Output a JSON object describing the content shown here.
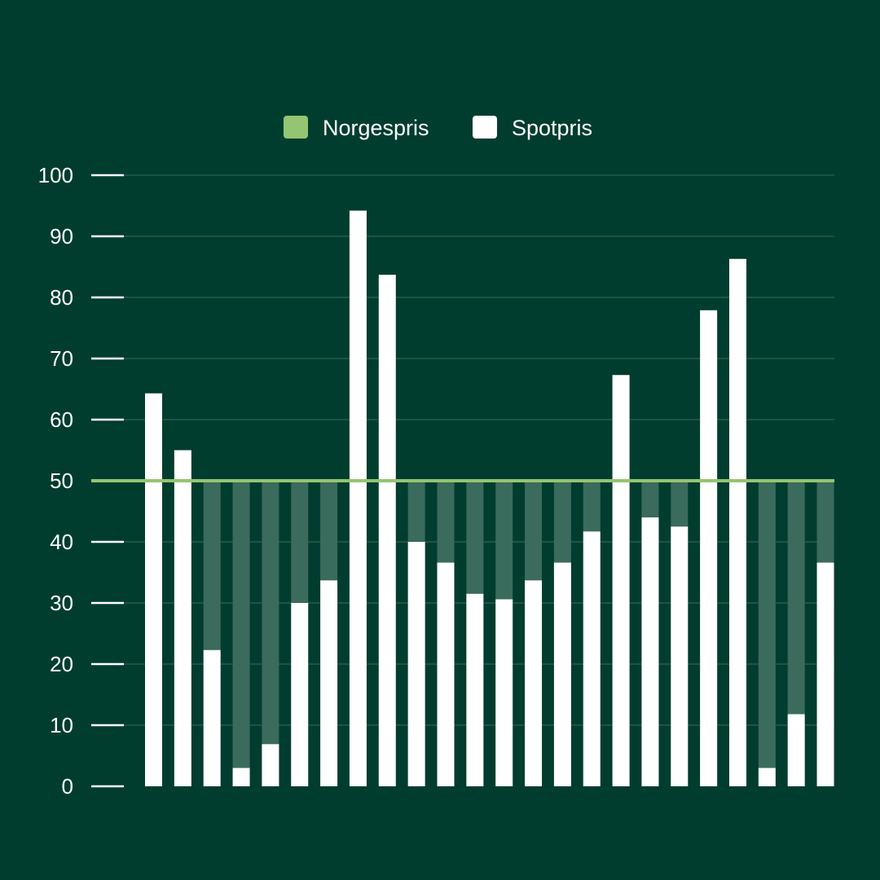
{
  "chart_data": {
    "type": "bar",
    "title": "",
    "xlabel": "",
    "ylabel": "",
    "ylim": [
      0,
      100
    ],
    "yticks": [
      0,
      10,
      20,
      30,
      40,
      50,
      60,
      70,
      80,
      90,
      100
    ],
    "legend_position": "top-center",
    "grid": true,
    "legend": [
      {
        "name": "Norgespris",
        "color": "#93c572"
      },
      {
        "name": "Spotpris",
        "color": "#ffffff"
      }
    ],
    "reference_line": {
      "name": "Norgespris",
      "value": 50
    },
    "series": [
      {
        "name": "Spotpris",
        "values": [
          64.3,
          55.0,
          22.3,
          3.0,
          6.9,
          30.0,
          33.7,
          94.2,
          83.7,
          40.0,
          36.6,
          31.5,
          30.6,
          33.7,
          36.6,
          41.7,
          67.3,
          44.0,
          42.5,
          77.9,
          86.3,
          3.0,
          11.8,
          36.6
        ]
      }
    ]
  },
  "colors": {
    "background": "#013d2f",
    "gridline": "#1d5445",
    "shortfall": "#3a6b5c",
    "norgespris": "#93c572",
    "spotpris": "#ffffff",
    "axis_text": "#ffffff"
  }
}
